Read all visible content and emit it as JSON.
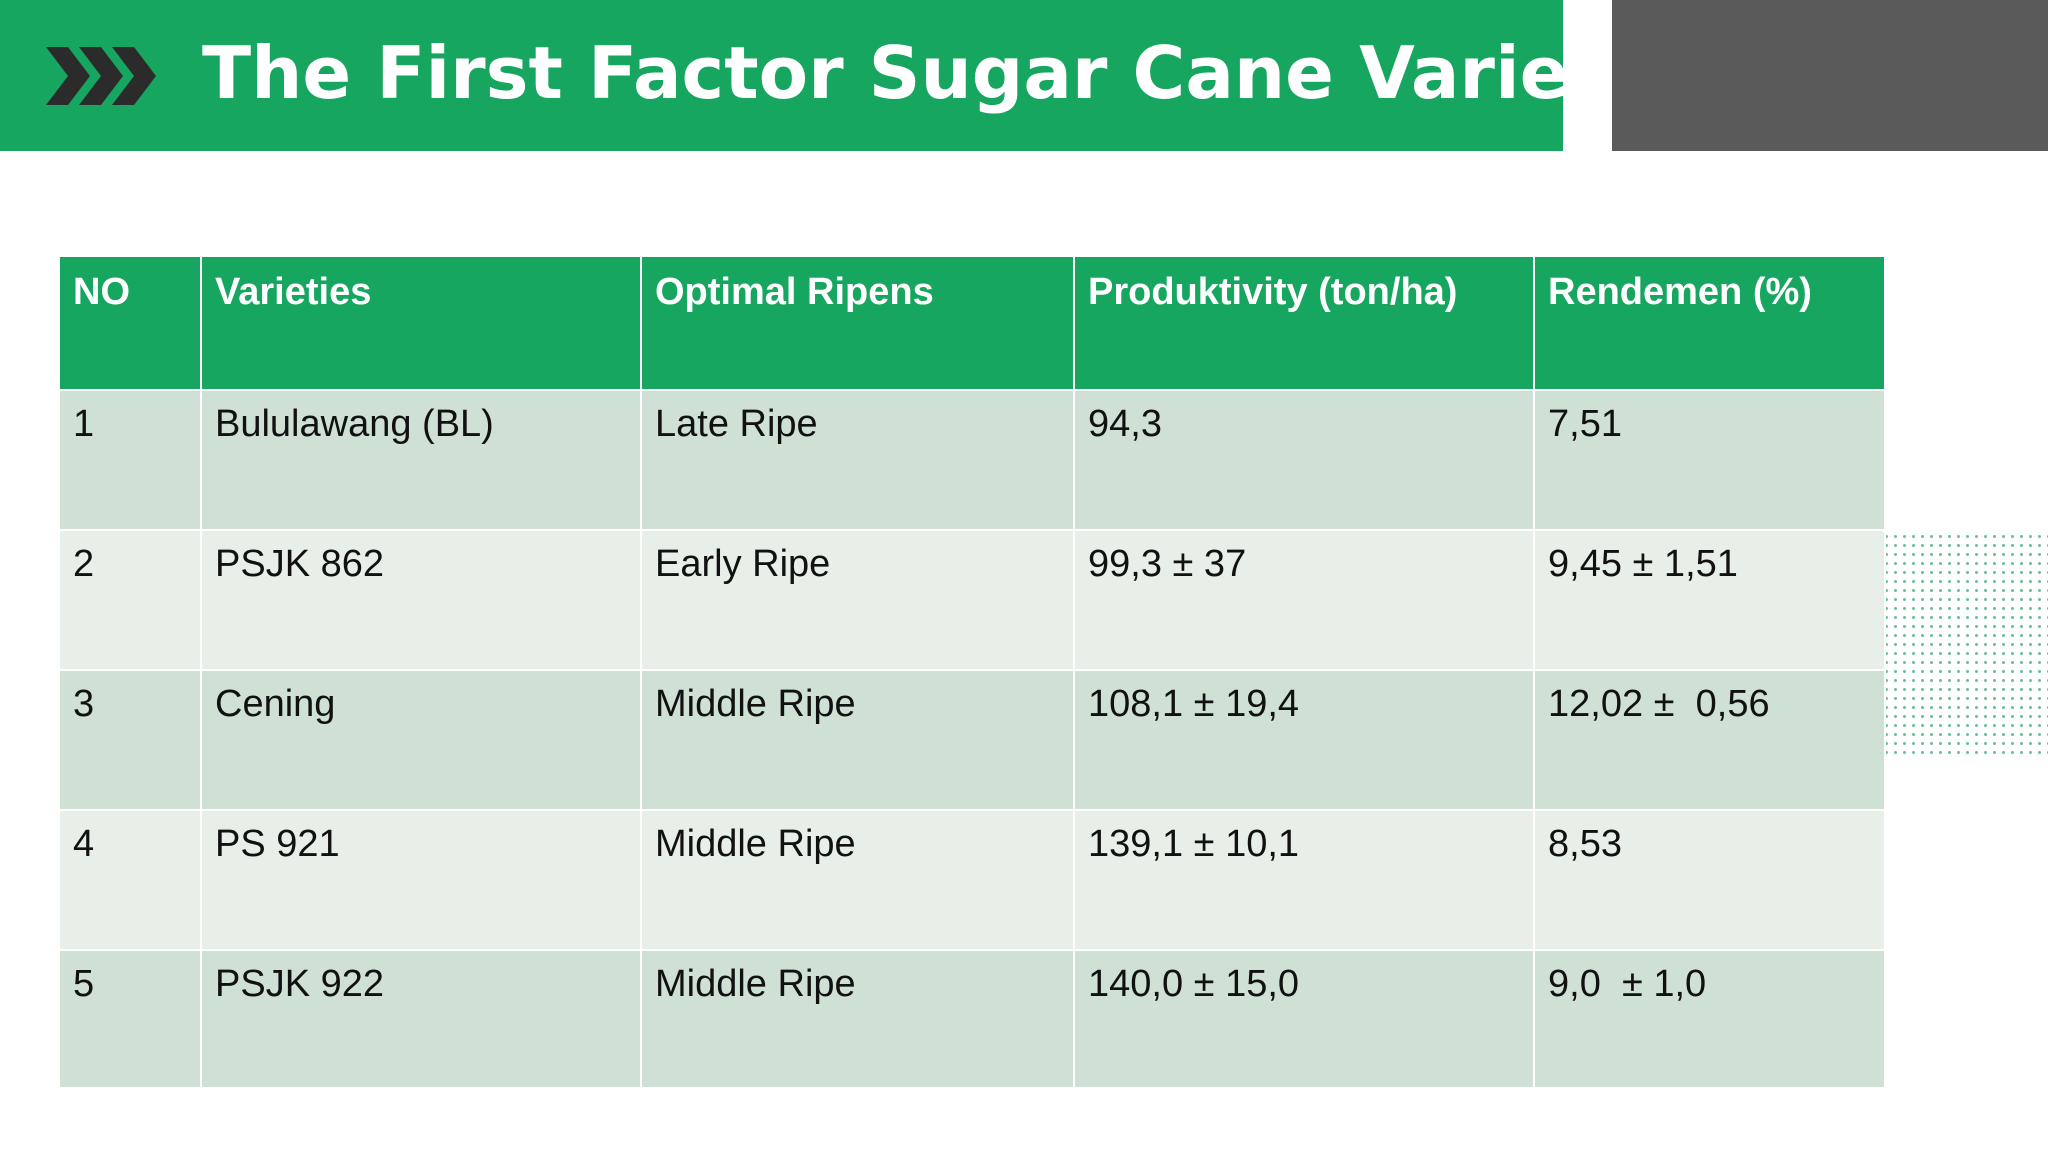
{
  "header": {
    "title": "The First Factor Sugar Cane Varieties",
    "icon": "triple-chevron-right-icon",
    "accent_color": "#17a660",
    "side_block_color": "#5a5a5a"
  },
  "table": {
    "columns": [
      "NO",
      "Varieties",
      "Optimal Ripens",
      "Produktivity (ton/ha)",
      "Rendemen (%)"
    ],
    "rows": [
      [
        "1",
        "Bululawang (BL)",
        "Late Ripe",
        "94,3",
        "7,51"
      ],
      [
        "2",
        "PSJK 862",
        "Early Ripe",
        "99,3 ± 37",
        "9,45 ± 1,51"
      ],
      [
        "3",
        "Cening",
        "Middle Ripe",
        "108,1 ± 19,4",
        "12,02 ±  0,56"
      ],
      [
        "4",
        "PS 921",
        "Middle Ripe",
        "139,1 ± 10,1",
        "8,53"
      ],
      [
        "5",
        "PSJK 922",
        "Middle Ripe",
        "140,0 ± 15,0",
        "9,0  ± 1,0"
      ]
    ]
  }
}
